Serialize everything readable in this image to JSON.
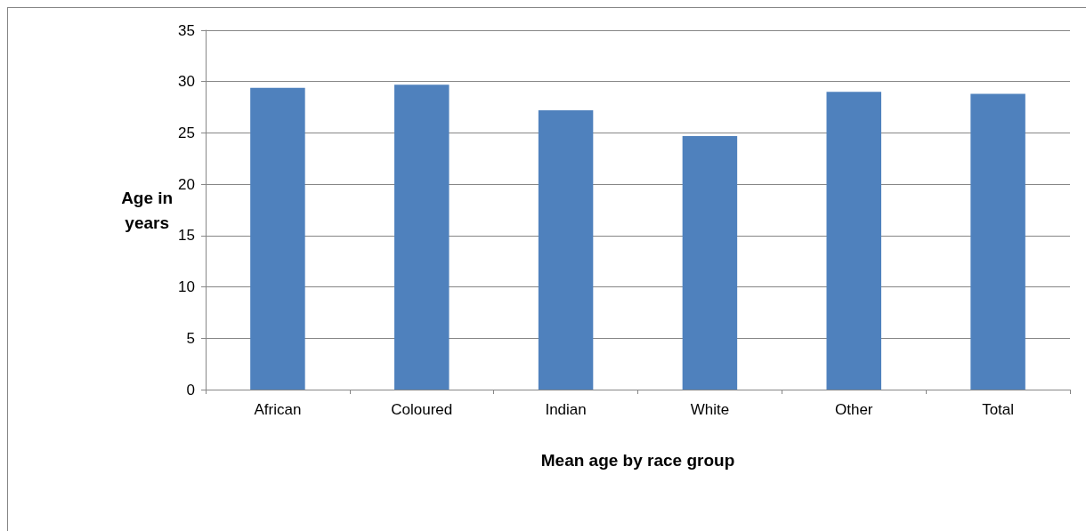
{
  "chart_data": {
    "type": "bar",
    "categories": [
      "African",
      "Coloured",
      "Indian",
      "White",
      "Other",
      "Total"
    ],
    "values": [
      29.4,
      29.7,
      27.2,
      24.7,
      29.0,
      28.8
    ],
    "color": "#4f81bd",
    "xlabel": "Mean age by race group",
    "ylabel": "Age in\nyears",
    "ylim": [
      0,
      35
    ],
    "yticks": [
      0,
      5,
      10,
      15,
      20,
      25,
      30,
      35
    ],
    "grid": "y"
  }
}
